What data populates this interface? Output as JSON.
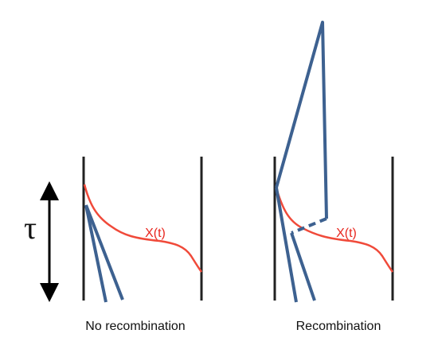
{
  "tau_label": "τ",
  "panels": [
    {
      "curve_label": "X(t)",
      "caption": "No recombination"
    },
    {
      "curve_label": "X(t)",
      "caption": "Recombination"
    }
  ]
}
